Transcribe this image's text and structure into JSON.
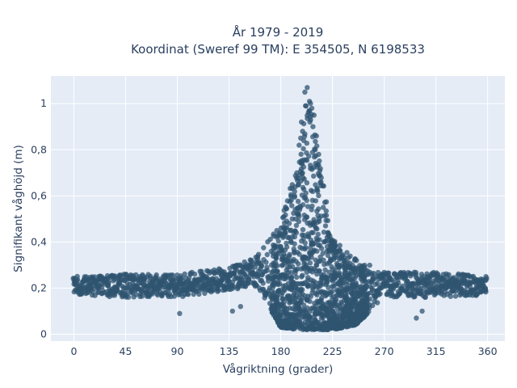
{
  "chart_data": {
    "type": "scatter",
    "title": "År 1979 - 2019",
    "subtitle": "Koordinat (Sweref 99 TM): E 354505, N 6198533",
    "xlabel": "Vågriktning (grader)",
    "ylabel": "Signifikant våghöjd (m)",
    "xlim": [
      -20,
      375
    ],
    "ylim": [
      -0.03,
      1.12
    ],
    "xticks": [
      0,
      45,
      90,
      135,
      180,
      225,
      270,
      315,
      360
    ],
    "xtick_labels": [
      "0",
      "45",
      "90",
      "135",
      "180",
      "225",
      "270",
      "315",
      "360"
    ],
    "yticks": [
      0,
      0.2,
      0.4,
      0.6,
      0.8,
      1
    ],
    "ytick_labels": [
      "0",
      "0,2",
      "0,4",
      "0,6",
      "0,8",
      "1"
    ],
    "grid": true,
    "colors": {
      "marker": "#2f5470",
      "plot_bg": "#e5ecf6",
      "grid": "#ffffff",
      "text": "#2a3f5f"
    },
    "envelope": {
      "x": [
        0,
        45,
        90,
        135,
        160,
        180,
        195,
        203,
        212,
        225,
        245,
        270,
        315,
        360
      ],
      "y_low": [
        0.17,
        0.16,
        0.16,
        0.19,
        0.21,
        0.03,
        0.02,
        0.02,
        0.02,
        0.02,
        0.04,
        0.16,
        0.16,
        0.17
      ],
      "y_high": [
        0.25,
        0.26,
        0.26,
        0.29,
        0.34,
        0.48,
        0.75,
        1.07,
        0.82,
        0.42,
        0.33,
        0.27,
        0.27,
        0.25
      ]
    },
    "series": [
      {
        "x": [
          201,
          203,
          205,
          207,
          209,
          198,
          211,
          196,
          213,
          199,
          204,
          206,
          200,
          202,
          208,
          210,
          194,
          215,
          192,
          217,
          190,
          219,
          188,
          221,
          186,
          224,
          184,
          228,
          182,
          232,
          180,
          236,
          178,
          240,
          176,
          244,
          174,
          248,
          252,
          256,
          260,
          265,
          172,
          168,
          165,
          160,
          155,
          150,
          145,
          140,
          135,
          130,
          125,
          120,
          115,
          110,
          105,
          100,
          95,
          90,
          85,
          80,
          75,
          70,
          65,
          60,
          55,
          50,
          45,
          40,
          35,
          30,
          25,
          20,
          15,
          10,
          5,
          2,
          270,
          275,
          280,
          285,
          290,
          295,
          300,
          305,
          310,
          315,
          320,
          325,
          330,
          335,
          340,
          345,
          350,
          355,
          358,
          138,
          145,
          92,
          298,
          303
        ],
        "y": [
          1.05,
          1.07,
          1.01,
          0.98,
          0.95,
          0.92,
          0.86,
          0.82,
          0.78,
          0.88,
          0.96,
          0.93,
          0.84,
          0.99,
          0.9,
          0.8,
          0.7,
          0.66,
          0.6,
          0.55,
          0.5,
          0.47,
          0.45,
          0.44,
          0.42,
          0.4,
          0.46,
          0.36,
          0.42,
          0.33,
          0.38,
          0.31,
          0.35,
          0.29,
          0.33,
          0.28,
          0.3,
          0.27,
          0.26,
          0.26,
          0.25,
          0.25,
          0.3,
          0.29,
          0.27,
          0.26,
          0.28,
          0.25,
          0.27,
          0.24,
          0.25,
          0.24,
          0.22,
          0.23,
          0.22,
          0.2,
          0.22,
          0.21,
          0.19,
          0.2,
          0.22,
          0.18,
          0.21,
          0.2,
          0.19,
          0.22,
          0.21,
          0.19,
          0.2,
          0.18,
          0.2,
          0.22,
          0.19,
          0.21,
          0.2,
          0.23,
          0.21,
          0.19,
          0.22,
          0.24,
          0.21,
          0.2,
          0.23,
          0.19,
          0.22,
          0.21,
          0.2,
          0.23,
          0.19,
          0.22,
          0.2,
          0.21,
          0.19,
          0.22,
          0.2,
          0.21,
          0.2,
          0.1,
          0.12,
          0.09,
          0.07,
          0.1
        ]
      }
    ]
  }
}
